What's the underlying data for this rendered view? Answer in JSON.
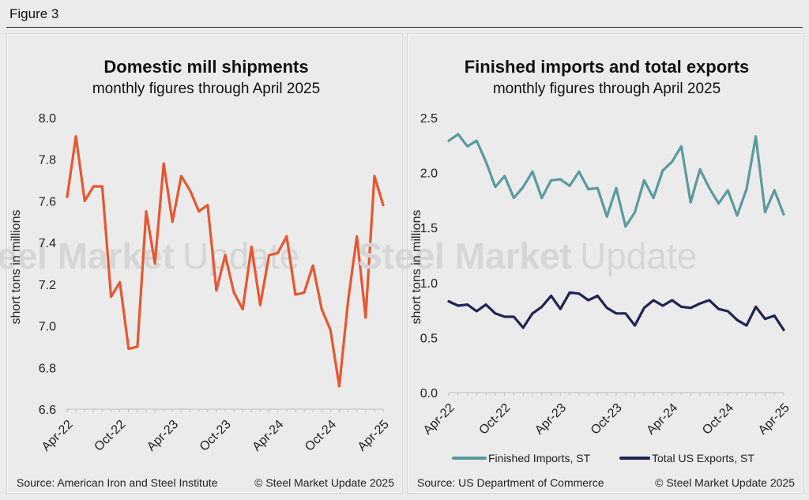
{
  "figure_label": "Figure 3",
  "watermark": {
    "bold": "Steel Market",
    "light": "Update"
  },
  "chart_data": [
    {
      "type": "line",
      "title": "Domestic mill shipments",
      "subtitle": "monthly figures through April 2025",
      "ylabel": "short tons in millions",
      "xlabel": "",
      "ylim": [
        6.6,
        8.0
      ],
      "yticks": [
        6.6,
        6.8,
        7.0,
        7.2,
        7.4,
        7.6,
        7.8,
        8.0
      ],
      "ytick_labels": [
        "6.6",
        "6.8",
        "7.0",
        "7.2",
        "7.4",
        "7.6",
        "7.8",
        "8.0"
      ],
      "xtick_labels": [
        {
          "label": "Apr-22",
          "index": 0
        },
        {
          "label": "Oct-22",
          "index": 6
        },
        {
          "label": "Apr-23",
          "index": 12
        },
        {
          "label": "Oct-23",
          "index": 18
        },
        {
          "label": "Apr-24",
          "index": 24
        },
        {
          "label": "Oct-24",
          "index": 30
        },
        {
          "label": "Apr-25",
          "index": 36
        }
      ],
      "color": "#e8562f",
      "series": [
        {
          "name": "Domestic mill shipments",
          "values": [
            7.62,
            7.91,
            7.6,
            7.67,
            7.67,
            7.14,
            7.21,
            6.89,
            6.9,
            7.55,
            7.3,
            7.78,
            7.5,
            7.72,
            7.65,
            7.55,
            7.58,
            7.17,
            7.34,
            7.16,
            7.08,
            7.38,
            7.1,
            7.34,
            7.35,
            7.43,
            7.15,
            7.16,
            7.29,
            7.08,
            6.98,
            6.71,
            7.12,
            7.43,
            7.04,
            7.72,
            7.58
          ]
        }
      ],
      "source": "Source: American Iron and Steel Institute",
      "copyright": "© Steel Market Update 2025"
    },
    {
      "type": "line",
      "title": "Finished imports and total exports",
      "subtitle": "monthly figures through April 2025",
      "ylabel": "short tons in millions",
      "xlabel": "",
      "ylim": [
        0.0,
        2.5
      ],
      "yticks": [
        0.0,
        0.5,
        1.0,
        1.5,
        2.0,
        2.5
      ],
      "ytick_labels": [
        "0.0",
        "0.5",
        "1.0",
        "1.5",
        "2.0",
        "2.5"
      ],
      "xtick_labels": [
        {
          "label": "Apr-22",
          "index": 0
        },
        {
          "label": "Oct-22",
          "index": 6
        },
        {
          "label": "Apr-23",
          "index": 12
        },
        {
          "label": "Oct-23",
          "index": 18
        },
        {
          "label": "Apr-24",
          "index": 24
        },
        {
          "label": "Oct-24",
          "index": 30
        },
        {
          "label": "Apr-25",
          "index": 36
        }
      ],
      "series": [
        {
          "name": "Finished Imports, ST",
          "color": "#5b9aa0",
          "values": [
            2.29,
            2.35,
            2.24,
            2.29,
            2.1,
            1.87,
            1.97,
            1.77,
            1.87,
            2.01,
            1.77,
            1.93,
            1.94,
            1.88,
            2.01,
            1.85,
            1.86,
            1.6,
            1.86,
            1.51,
            1.64,
            1.93,
            1.77,
            2.02,
            2.1,
            2.24,
            1.73,
            2.03,
            1.86,
            1.72,
            1.84,
            1.61,
            1.85,
            2.33,
            1.64,
            1.84,
            1.62
          ]
        },
        {
          "name": "Total US Exports, ST",
          "color": "#1f2451",
          "values": [
            0.83,
            0.79,
            0.8,
            0.74,
            0.8,
            0.72,
            0.69,
            0.69,
            0.59,
            0.72,
            0.78,
            0.88,
            0.76,
            0.91,
            0.9,
            0.84,
            0.88,
            0.77,
            0.72,
            0.72,
            0.61,
            0.77,
            0.84,
            0.79,
            0.84,
            0.78,
            0.77,
            0.81,
            0.84,
            0.76,
            0.74,
            0.66,
            0.61,
            0.78,
            0.67,
            0.7,
            0.57
          ]
        }
      ],
      "source": "Source: US Department of Commerce",
      "copyright": "© Steel Market Update 2025"
    }
  ]
}
